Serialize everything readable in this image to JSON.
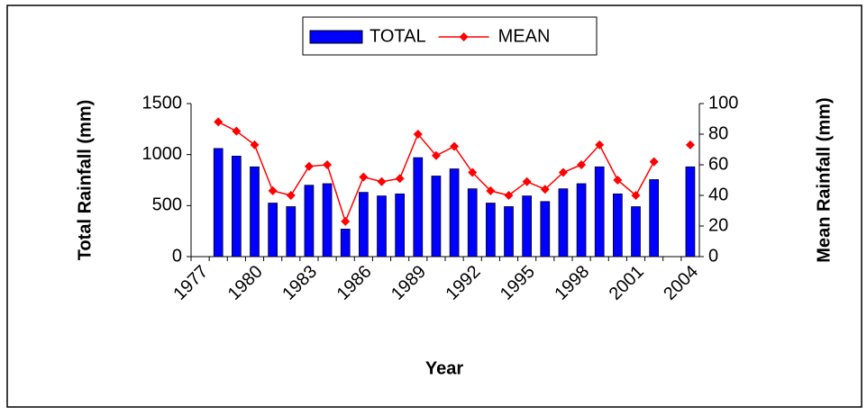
{
  "chart_data": {
    "type": "bar-line",
    "x_label": "Year",
    "y_label": "Total Rainfall (mm)",
    "y2_label": "Mean Rainfall (mm)",
    "categories": [
      "1977",
      null,
      null,
      "1980",
      null,
      null,
      "1983",
      null,
      null,
      "1986",
      null,
      null,
      "1989",
      null,
      null,
      "1992",
      null,
      null,
      "1995",
      null,
      null,
      "1998",
      null,
      null,
      "2001",
      null,
      null,
      "2004"
    ],
    "series": [
      {
        "name": "TOTAL",
        "color": "#0000ff",
        "kind": "bar",
        "values": [
          null,
          1060,
          985,
          880,
          525,
          490,
          700,
          715,
          270,
          630,
          595,
          615,
          970,
          790,
          860,
          665,
          525,
          490,
          595,
          540,
          665,
          715,
          880,
          615,
          490,
          755,
          null,
          880
        ]
      },
      {
        "name": "MEAN",
        "color": "#ff0000",
        "kind": "line",
        "axis": "y2",
        "values": [
          null,
          88,
          82,
          73,
          43,
          40,
          59,
          60,
          23,
          52,
          49,
          51,
          80,
          66,
          72,
          55,
          43,
          40,
          49,
          44,
          55,
          60,
          73,
          50,
          40,
          62,
          null,
          73
        ]
      }
    ],
    "ylim": [
      0,
      1500
    ],
    "yticks": [
      0,
      500,
      1000,
      1500
    ],
    "y2lim": [
      0,
      100
    ],
    "y2ticks": [
      0,
      20,
      40,
      60,
      80,
      100
    ],
    "legend": "top"
  }
}
